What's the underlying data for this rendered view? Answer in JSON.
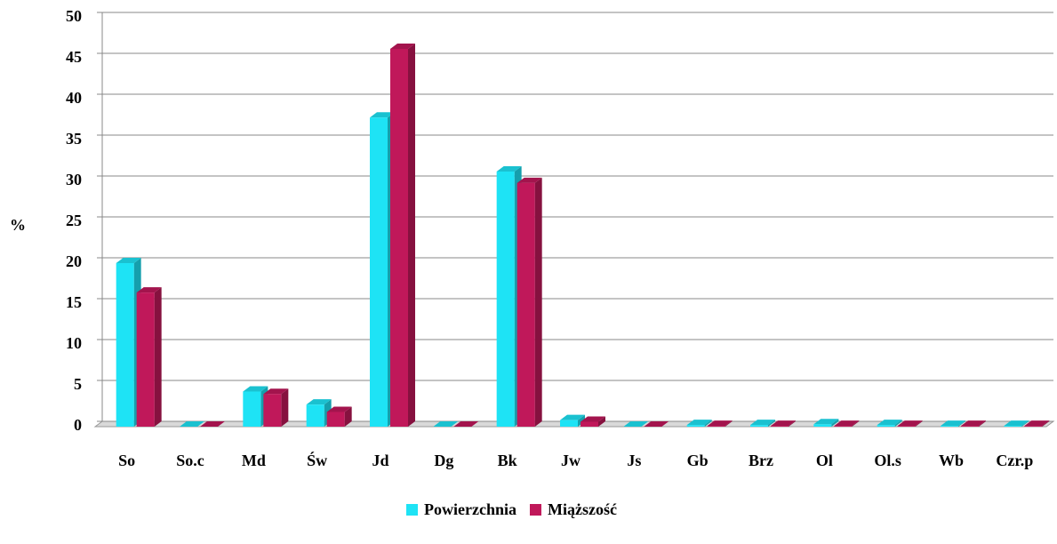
{
  "chart_data": {
    "type": "bar",
    "y_label": "%",
    "categories": [
      "So",
      "So.c",
      "Md",
      "Św",
      "Jd",
      "Dg",
      "Bk",
      "Jw",
      "Js",
      "Gb",
      "Brz",
      "Ol",
      "Ol.s",
      "Wb",
      "Czr.p"
    ],
    "series": [
      {
        "name": "Powierzchnia",
        "color": "#1ee3f5",
        "values": [
          20.0,
          0,
          4.3,
          2.7,
          37.8,
          0,
          31.2,
          0.8,
          0,
          0.2,
          0.2,
          0.3,
          0.2,
          0.1,
          0.1
        ]
      },
      {
        "name": "Miąższość",
        "color": "#c0185a",
        "values": [
          16.4,
          0,
          4.0,
          1.8,
          46.2,
          0,
          29.8,
          0.6,
          0,
          0.1,
          0.1,
          0.1,
          0.1,
          0.1,
          0.1
        ]
      }
    ],
    "ylim": [
      0,
      50
    ],
    "yticks": [
      0,
      5,
      10,
      15,
      20,
      25,
      30,
      35,
      40,
      45,
      50
    ],
    "grid": true,
    "legend": "bottom"
  }
}
